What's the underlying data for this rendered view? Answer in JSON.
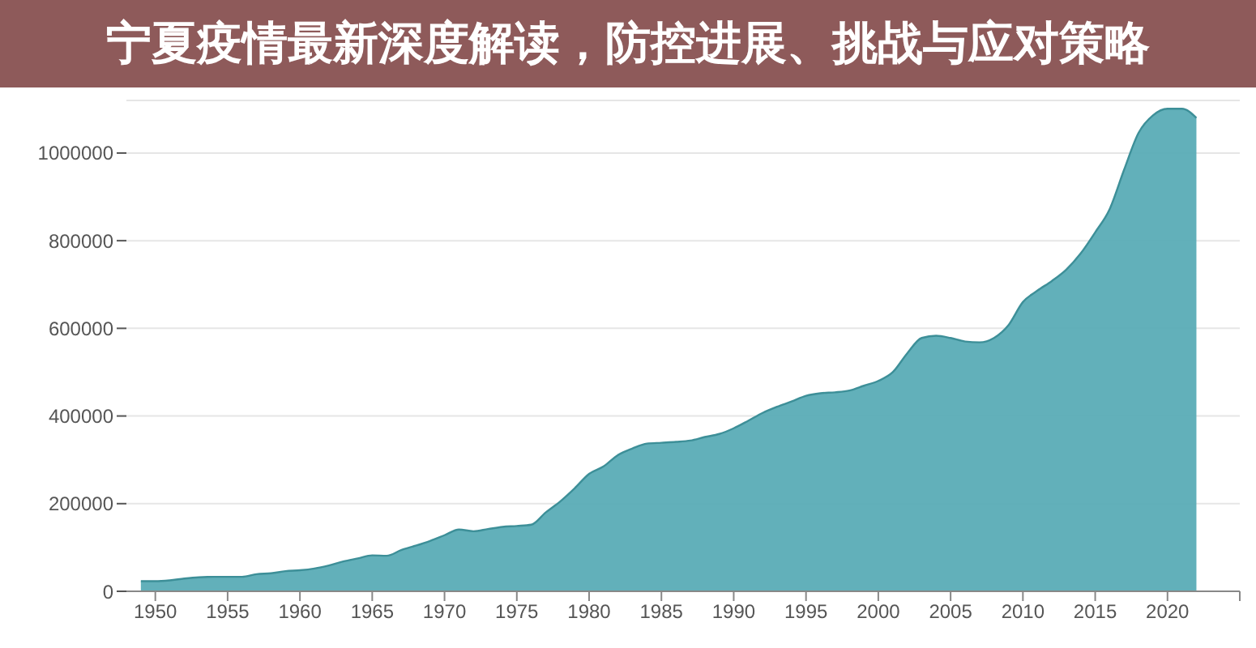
{
  "chart_data": {
    "type": "area",
    "title": "宁夏疫情最新深度解读，防控进展、挑战与应对策略",
    "x": [
      1949,
      1950,
      1951,
      1952,
      1953,
      1954,
      1955,
      1956,
      1957,
      1958,
      1959,
      1960,
      1961,
      1962,
      1963,
      1964,
      1965,
      1966,
      1967,
      1968,
      1969,
      1970,
      1971,
      1972,
      1973,
      1974,
      1975,
      1976,
      1977,
      1978,
      1979,
      1980,
      1981,
      1982,
      1983,
      1984,
      1985,
      1986,
      1987,
      1988,
      1989,
      1990,
      1991,
      1992,
      1993,
      1994,
      1995,
      1996,
      1997,
      1998,
      1999,
      2000,
      2001,
      2002,
      2003,
      2004,
      2005,
      2006,
      2007,
      2008,
      2009,
      2010,
      2011,
      2012,
      2013,
      2014,
      2015,
      2016,
      2017,
      2018,
      2019,
      2020,
      2021,
      2022
    ],
    "series": [
      {
        "color": "#5aacb6",
        "values": [
          23000,
          23000,
          25000,
          29000,
          32000,
          33000,
          33000,
          33000,
          39000,
          41000,
          46000,
          48000,
          52000,
          59000,
          68000,
          75000,
          82000,
          81000,
          94000,
          104000,
          115000,
          128000,
          141000,
          137000,
          142000,
          147000,
          149000,
          152000,
          180000,
          205000,
          235000,
          268000,
          285000,
          311000,
          326000,
          337000,
          339000,
          341000,
          344000,
          352000,
          359000,
          372000,
          389000,
          407000,
          421000,
          433000,
          446000,
          452000,
          454000,
          458000,
          469000,
          480000,
          500000,
          543000,
          578000,
          583000,
          578000,
          570000,
          568000,
          578000,
          607000,
          660000,
          686000,
          708000,
          734000,
          771000,
          819000,
          872000,
          962000,
          1046000,
          1086000,
          1101000,
          1101000,
          1080000
        ]
      }
    ],
    "xlim": [
      1948,
      2025
    ],
    "xticks": [
      1950,
      1955,
      1960,
      1965,
      1970,
      1975,
      1980,
      1985,
      1990,
      1995,
      2000,
      2005,
      2010,
      2015,
      2020,
      {
        "value": 2025,
        "label": null
      }
    ],
    "ylim": [
      0,
      1120000
    ],
    "yticks": [
      0,
      200000,
      400000,
      600000,
      800000,
      1000000
    ],
    "grid": "y"
  }
}
